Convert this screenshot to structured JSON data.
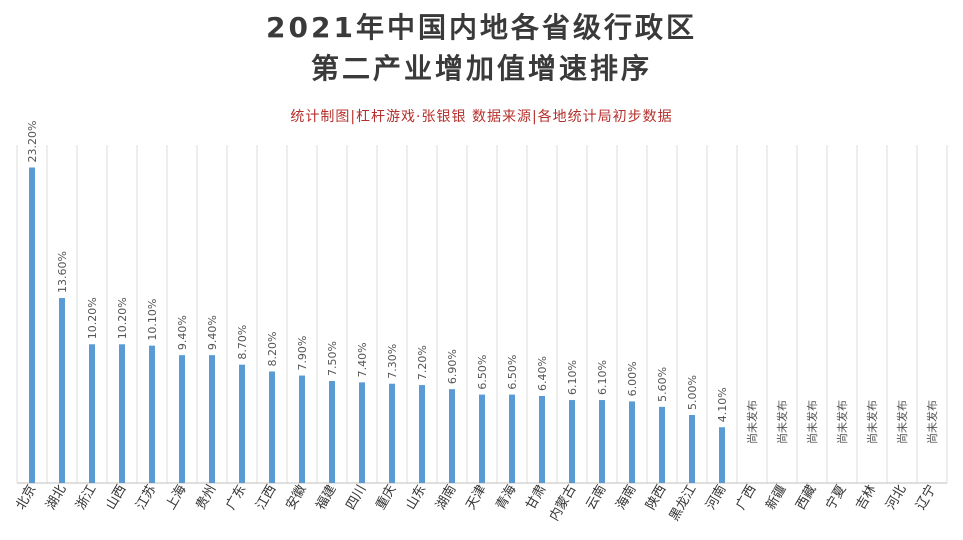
{
  "chart_data": {
    "type": "bar",
    "title": "2021年中国内地各省级行政区",
    "title_line2": "第二产业增加值增速排序",
    "subtitle": "统计制图|杠杆游戏·张银银    数据来源|各地统计局初步数据",
    "categories": [
      "北京",
      "湖北",
      "浙江",
      "山西",
      "江苏",
      "上海",
      "贵州",
      "广东",
      "江西",
      "安徽",
      "福建",
      "四川",
      "重庆",
      "山东",
      "湖南",
      "天津",
      "青海",
      "甘肃",
      "内蒙古",
      "云南",
      "海南",
      "陕西",
      "黑龙江",
      "河南",
      "广西",
      "新疆",
      "西藏",
      "宁夏",
      "吉林",
      "河北",
      "辽宁"
    ],
    "values": [
      23.2,
      13.6,
      10.2,
      10.2,
      10.1,
      9.4,
      9.4,
      8.7,
      8.2,
      7.9,
      7.5,
      7.4,
      7.3,
      7.2,
      6.9,
      6.5,
      6.5,
      6.4,
      6.1,
      6.1,
      6.0,
      5.6,
      5.0,
      4.1,
      null,
      null,
      null,
      null,
      null,
      null,
      null
    ],
    "data_labels": [
      "23.20%",
      "13.60%",
      "10.20%",
      "10.20%",
      "10.10%",
      "9.40%",
      "9.40%",
      "8.70%",
      "8.20%",
      "7.90%",
      "7.50%",
      "7.40%",
      "7.30%",
      "7.20%",
      "6.90%",
      "6.50%",
      "6.50%",
      "6.40%",
      "6.10%",
      "6.10%",
      "6.00%",
      "5.60%",
      "5.00%",
      "4.10%",
      "尚未发布",
      "尚未发布",
      "尚未发布",
      "尚未发布",
      "尚未发布",
      "尚未发布",
      "尚未发布"
    ],
    "ylim": [
      0,
      25
    ],
    "grid": "vertical",
    "bar_color": "#5b9bd5",
    "xlabel": "",
    "ylabel": ""
  }
}
